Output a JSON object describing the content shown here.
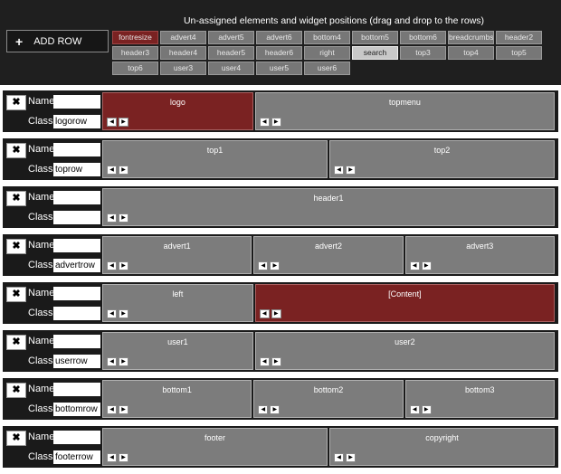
{
  "toolbar": {
    "add_row_icon": "+",
    "add_row_label": "ADD ROW"
  },
  "pool": {
    "title": "Un-assigned elements and widget positions (drag and drop to the rows)",
    "items": [
      {
        "label": "fontresize",
        "style": "red"
      },
      {
        "label": "advert4",
        "style": ""
      },
      {
        "label": "advert5",
        "style": ""
      },
      {
        "label": "advert6",
        "style": ""
      },
      {
        "label": "bottom4",
        "style": ""
      },
      {
        "label": "bottom5",
        "style": ""
      },
      {
        "label": "bottom6",
        "style": ""
      },
      {
        "label": "breadcrumbs",
        "style": ""
      },
      {
        "label": "header2",
        "style": ""
      },
      {
        "label": "header3",
        "style": ""
      },
      {
        "label": "header4",
        "style": ""
      },
      {
        "label": "header5",
        "style": ""
      },
      {
        "label": "header6",
        "style": ""
      },
      {
        "label": "right",
        "style": ""
      },
      {
        "label": "search",
        "style": "light"
      },
      {
        "label": "top3",
        "style": ""
      },
      {
        "label": "top4",
        "style": ""
      },
      {
        "label": "top5",
        "style": ""
      },
      {
        "label": "top6",
        "style": ""
      },
      {
        "label": "user3",
        "style": ""
      },
      {
        "label": "user4",
        "style": ""
      },
      {
        "label": "user5",
        "style": ""
      },
      {
        "label": "user6",
        "style": ""
      }
    ]
  },
  "labels": {
    "name": "Name",
    "class": "Class",
    "delete_icon": "✖",
    "left_arrow": "◀",
    "right_arrow": "▶"
  },
  "rows": [
    {
      "name": "",
      "class": "logorow",
      "cells": [
        {
          "label": "logo",
          "style": "red",
          "flex": 1
        },
        {
          "label": "topmenu",
          "style": "",
          "flex": 2
        }
      ]
    },
    {
      "name": "",
      "class": "toprow",
      "cells": [
        {
          "label": "top1",
          "style": "",
          "flex": 1
        },
        {
          "label": "top2",
          "style": "",
          "flex": 1
        }
      ]
    },
    {
      "name": "",
      "class": "",
      "cells": [
        {
          "label": "header1",
          "style": "",
          "flex": 1
        }
      ]
    },
    {
      "name": "",
      "class": "advertrow",
      "cells": [
        {
          "label": "advert1",
          "style": "",
          "flex": 1
        },
        {
          "label": "advert2",
          "style": "",
          "flex": 1
        },
        {
          "label": "advert3",
          "style": "",
          "flex": 1
        }
      ]
    },
    {
      "name": "",
      "class": "",
      "cells": [
        {
          "label": "left",
          "style": "",
          "flex": 1
        },
        {
          "label": "[Content]",
          "style": "red",
          "flex": 2
        }
      ]
    },
    {
      "name": "",
      "class": "userrow",
      "cells": [
        {
          "label": "user1",
          "style": "",
          "flex": 1
        },
        {
          "label": "user2",
          "style": "",
          "flex": 2
        }
      ]
    },
    {
      "name": "",
      "class": "bottomrow",
      "cells": [
        {
          "label": "bottom1",
          "style": "",
          "flex": 1
        },
        {
          "label": "bottom2",
          "style": "",
          "flex": 1
        },
        {
          "label": "bottom3",
          "style": "",
          "flex": 1
        }
      ]
    },
    {
      "name": "",
      "class": "footerrow",
      "cells": [
        {
          "label": "footer",
          "style": "",
          "flex": 1
        },
        {
          "label": "copyright",
          "style": "",
          "flex": 1
        }
      ]
    }
  ]
}
